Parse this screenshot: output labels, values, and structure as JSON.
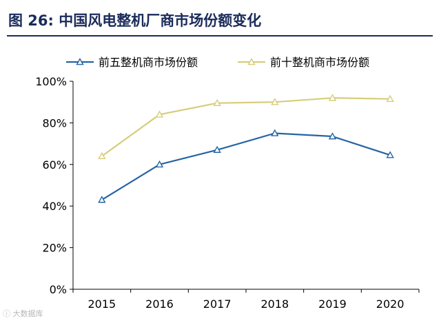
{
  "figure": {
    "title": "图  26:  中国风电整机厂商市场份额变化",
    "watermark": "ⓘ 大数据库"
  },
  "chart_data": {
    "type": "line",
    "title": "中国风电整机厂商市场份额变化",
    "categories": [
      "2015",
      "2016",
      "2017",
      "2018",
      "2019",
      "2020"
    ],
    "series": [
      {
        "name": "前五整机商市场份额",
        "color": "#2464a3",
        "values": [
          43,
          60,
          67,
          75,
          73.5,
          64.5
        ]
      },
      {
        "name": "前十整机商市场份额",
        "color": "#d6cd79",
        "values": [
          64,
          84,
          89.5,
          90,
          92,
          91.5
        ]
      }
    ],
    "y_ticks": [
      "0%",
      "20%",
      "40%",
      "60%",
      "80%",
      "100%"
    ],
    "y_tick_values": [
      0,
      20,
      40,
      60,
      80,
      100
    ],
    "ylim": [
      0,
      100
    ],
    "xlabel": "",
    "ylabel": "",
    "legend_position": "top",
    "grid": false
  }
}
